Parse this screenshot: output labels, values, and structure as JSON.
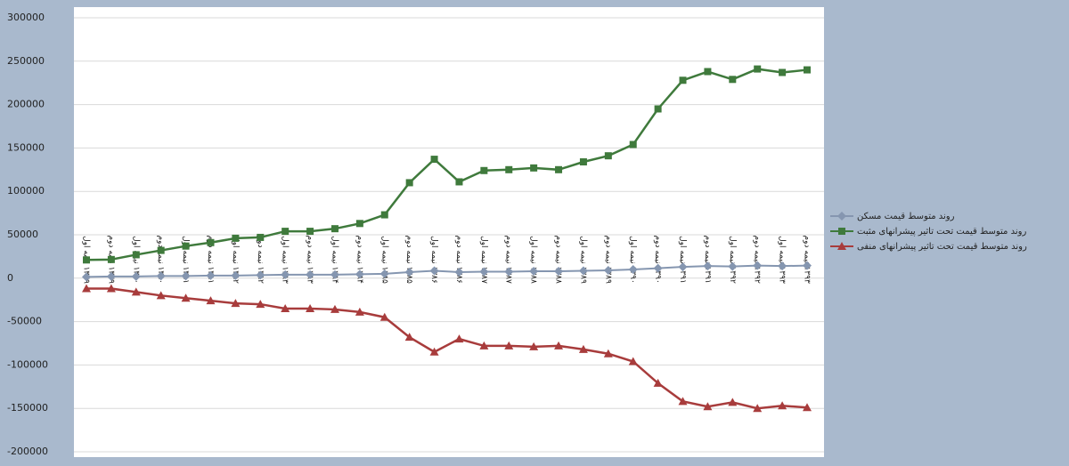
{
  "chart_data": {
    "type": "line",
    "categories": [
      "۱۳۷۹ نیمه اول",
      "۱۳۷۹ نیمه دوم",
      "۱۳۸۰ نیمه اول",
      "۱۳۸۰ نیمه دوم",
      "۱۳۸۱ نیمه اول",
      "۱۳۸۱ نیمه دوم",
      "۱۳۸۲ نیمه اول",
      "۱۳۸۲ نیمه دوم",
      "۱۳۸۳ نیمه اول",
      "۱۳۸۳ نیمه دوم",
      "۱۳۸۴ نیمه اول",
      "۱۳۸۴ نیمه دوم",
      "۱۳۸۵ نیمه اول",
      "۱۳۸۵ نیمه دوم",
      "۱۳۸۶ نیمه اول",
      "۱۳۸۶ نیمه دوم",
      "۱۳۸۷ نیمه اول",
      "۱۳۸۷ نیمه دوم",
      "۱۳۸۸ نیمه اول",
      "۱۳۸۸ نیمه دوم",
      "۱۳۸۹ نیمه اول",
      "۱۳۸۹ نیمه دوم",
      "۱۳۹۰ نیمه اول",
      "۱۳۹۰ نیمه دوم",
      "۱۳۹۱ نیمه اول",
      "۱۳۹۱ نیمه دوم",
      "۱۳۹۲ نیمه اول",
      "۱۳۹۲ نیمه دوم",
      "۱۳۹۳ نیمه اول",
      "۱۳۹۳ نیمه دوم"
    ],
    "series": [
      {
        "name": "روند متوسط قیمت مسکن",
        "color": "#8596b0",
        "marker": "diamond",
        "values": [
          1500,
          2000,
          2000,
          2500,
          2500,
          3000,
          3000,
          3500,
          4000,
          4000,
          4000,
          4500,
          5000,
          7000,
          8500,
          7000,
          7500,
          7500,
          8000,
          8000,
          8500,
          9000,
          10000,
          11500,
          13000,
          14000,
          13500,
          14500,
          14000,
          14500
        ]
      },
      {
        "name": "روند متوسط قیمت تحت تاثیر پیشرانهای مثبت",
        "color": "#3f7a3c",
        "marker": "square",
        "values": [
          21000,
          21500,
          27000,
          32000,
          37000,
          41000,
          46000,
          47000,
          54000,
          54000,
          57000,
          63000,
          73000,
          110000,
          137000,
          111000,
          124000,
          125000,
          127000,
          125000,
          134000,
          141000,
          154000,
          195000,
          228000,
          238000,
          229000,
          241000,
          237000,
          240000
        ]
      },
      {
        "name": "روند متوسط قیمت تحت تاثیر پیشرانهای منفی",
        "color": "#a83c3c",
        "marker": "triangle",
        "values": [
          -12000,
          -12000,
          -16000,
          -20000,
          -23000,
          -26000,
          -29000,
          -30000,
          -35000,
          -35000,
          -36000,
          -39000,
          -45000,
          -68000,
          -85000,
          -70000,
          -78000,
          -78000,
          -79000,
          -78000,
          -82000,
          -87000,
          -96000,
          -121000,
          -142000,
          -148000,
          -143000,
          -150000,
          -147000,
          -149000
        ]
      }
    ],
    "ylim": [
      -200000,
      300000
    ],
    "yticks": [
      -200000,
      -150000,
      -100000,
      -50000,
      0,
      50000,
      100000,
      150000,
      200000,
      250000,
      300000
    ],
    "grid": true,
    "legend": "right"
  }
}
